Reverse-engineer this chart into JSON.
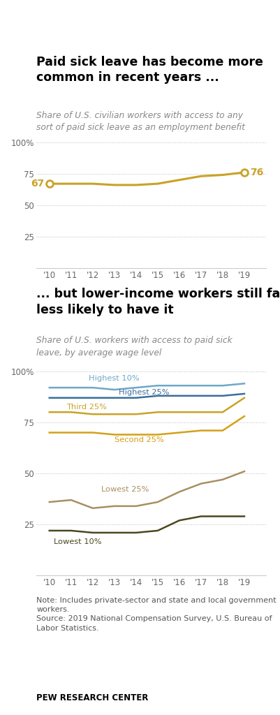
{
  "years": [
    2010,
    2011,
    2012,
    2013,
    2014,
    2015,
    2016,
    2017,
    2018,
    2019
  ],
  "year_labels": [
    "'10",
    "'11",
    "'12",
    "'13",
    "'14",
    "'15",
    "'16",
    "'17",
    "'18",
    "'19"
  ],
  "chart1": {
    "title": "Paid sick leave has become more\ncommon in recent years ...",
    "subtitle": "Share of U.S. civilian workers with access to any\nsort of paid sick leave as an employment benefit",
    "data": [
      67,
      67,
      67,
      66,
      66,
      67,
      70,
      73,
      74,
      76
    ],
    "color": "#C9A227",
    "ylim": [
      0,
      105
    ],
    "yticks": [
      25,
      50,
      75,
      100
    ],
    "ytick_labels": [
      "25",
      "50",
      "75",
      "100%"
    ]
  },
  "chart2": {
    "title": "... but lower-income workers still far\nless likely to have it",
    "subtitle": "Share of U.S. workers with access to paid sick\nleave, by average wage level",
    "ylim": [
      0,
      105
    ],
    "yticks": [
      25,
      50,
      75,
      100
    ],
    "ytick_labels": [
      "25",
      "50",
      "75",
      "100%"
    ],
    "series": {
      "Highest 10%": {
        "data": [
          92,
          92,
          92,
          91,
          92,
          93,
          93,
          93,
          93,
          94
        ],
        "color": "#6EA8C8"
      },
      "Highest 25%": {
        "data": [
          87,
          87,
          87,
          87,
          87,
          88,
          88,
          88,
          88,
          89
        ],
        "color": "#3B6E99"
      },
      "Third 25%": {
        "data": [
          80,
          80,
          79,
          79,
          79,
          80,
          80,
          80,
          80,
          87
        ],
        "color": "#C9A227"
      },
      "Second 25%": {
        "data": [
          70,
          70,
          70,
          69,
          69,
          69,
          70,
          71,
          71,
          78
        ],
        "color": "#D4A017"
      },
      "Lowest 25%": {
        "data": [
          36,
          37,
          33,
          34,
          34,
          36,
          41,
          45,
          47,
          51
        ],
        "color": "#A89060"
      },
      "Lowest 10%": {
        "data": [
          22,
          22,
          21,
          21,
          21,
          22,
          27,
          29,
          29,
          29
        ],
        "color": "#4A4820"
      }
    }
  },
  "note_text": "Note: Includes private-sector and state and local government\nworkers.\nSource: 2019 National Compensation Survey, U.S. Bureau of\nLabor Statistics.",
  "source_label": "PEW RESEARCH CENTER",
  "background_color": "#FFFFFF",
  "title_color": "#000000",
  "subtitle_color": "#888888",
  "axis_color": "#CCCCCC",
  "dotted_line_color": "#BBBBBB",
  "tick_color": "#666666"
}
